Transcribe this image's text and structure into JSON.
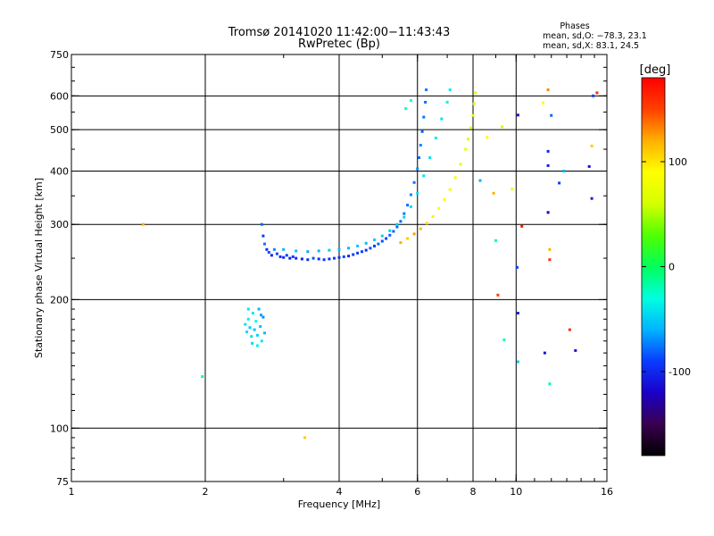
{
  "header": {
    "title_line1": "Tromsø 20141020 11:42:00−11:43:43",
    "title_line2": "RwPretec (Bp)"
  },
  "stats": {
    "heading": "Phases",
    "line_o": "mean, sd,O: −78.3, 23.1",
    "line_x": "mean, sd,X:  83.1, 24.5"
  },
  "colors": {
    "background": "#ffffff",
    "grid": "#000000",
    "colormap": [
      "#000000",
      "#3a004f",
      "#1a00c8",
      "#0a3cff",
      "#00b4ff",
      "#00ffe0",
      "#00ff5a",
      "#50ff00",
      "#d6ff00",
      "#ffff00",
      "#ffb000",
      "#ff4000",
      "#ff0000"
    ]
  },
  "chart_data": {
    "type": "scatter",
    "xlabel": "Frequency [MHz]",
    "ylabel": "Stationary phase Virtual Height [km]",
    "xscale": "log2",
    "yscale": "log",
    "xlim": [
      1,
      16
    ],
    "ylim": [
      75,
      750
    ],
    "xticks": [
      1,
      2,
      4,
      6,
      8,
      10,
      16
    ],
    "xgrid": [
      2,
      4,
      6,
      8,
      10
    ],
    "yticks": [
      75,
      100,
      200,
      300,
      400,
      500,
      600,
      750
    ],
    "ygrid": [
      100,
      200,
      300,
      400,
      500,
      600
    ],
    "grid": true,
    "colorbar": {
      "label": "[deg]",
      "min": -180,
      "max": 180,
      "ticks": [
        -100,
        0,
        100
      ]
    },
    "series": [
      {
        "trace": "low-frequency segment",
        "points": [
          [
            2.46,
            175,
            -40
          ],
          [
            2.48,
            168,
            -45
          ],
          [
            2.5,
            180,
            -35
          ],
          [
            2.52,
            172,
            -50
          ],
          [
            2.54,
            164,
            -42
          ],
          [
            2.56,
            186,
            -38
          ],
          [
            2.58,
            170,
            -55
          ],
          [
            2.6,
            178,
            -30
          ],
          [
            2.62,
            165,
            -48
          ],
          [
            2.64,
            190,
            -60
          ],
          [
            2.66,
            173,
            -52
          ],
          [
            2.68,
            160,
            -40
          ],
          [
            2.7,
            182,
            -70
          ],
          [
            2.55,
            158,
            -45
          ],
          [
            2.62,
            156,
            -35
          ],
          [
            2.67,
            184,
            -65
          ],
          [
            2.72,
            167,
            -58
          ],
          [
            2.5,
            190,
            -40
          ]
        ]
      },
      {
        "trace": "F-region O trace",
        "points": [
          [
            2.68,
            300,
            -80
          ],
          [
            2.7,
            282,
            -90
          ],
          [
            2.72,
            270,
            -75
          ],
          [
            2.75,
            262,
            -95
          ],
          [
            2.78,
            258,
            -85
          ],
          [
            2.82,
            254,
            -100
          ],
          [
            2.86,
            262,
            -70
          ],
          [
            2.9,
            256,
            -88
          ],
          [
            2.95,
            252,
            -95
          ],
          [
            3.0,
            251,
            -100
          ],
          [
            3.05,
            254,
            -90
          ],
          [
            3.1,
            250,
            -105
          ],
          [
            3.15,
            252,
            -92
          ],
          [
            3.2,
            250,
            -98
          ],
          [
            3.3,
            249,
            -100
          ],
          [
            3.4,
            248,
            -95
          ],
          [
            3.5,
            250,
            -85
          ],
          [
            3.6,
            249,
            -100
          ],
          [
            3.7,
            248,
            -92
          ],
          [
            3.8,
            249,
            -97
          ],
          [
            3.9,
            250,
            -90
          ],
          [
            4.0,
            251,
            -95
          ],
          [
            4.1,
            252,
            -88
          ],
          [
            4.2,
            253,
            -99
          ],
          [
            4.3,
            255,
            -90
          ],
          [
            4.4,
            257,
            -92
          ],
          [
            4.5,
            259,
            -88
          ],
          [
            4.6,
            261,
            -95
          ],
          [
            4.7,
            264,
            -85
          ],
          [
            4.8,
            267,
            -90
          ],
          [
            4.9,
            270,
            -80
          ],
          [
            5.0,
            274,
            -85
          ],
          [
            5.1,
            278,
            -88
          ],
          [
            5.2,
            283,
            -80
          ],
          [
            5.3,
            289,
            -82
          ],
          [
            5.4,
            296,
            -78
          ],
          [
            5.5,
            305,
            -80
          ],
          [
            5.6,
            318,
            -75
          ],
          [
            5.7,
            333,
            -78
          ],
          [
            5.8,
            352,
            -72
          ],
          [
            5.9,
            376,
            -75
          ],
          [
            6.0,
            405,
            -70
          ],
          [
            6.05,
            430,
            -78
          ],
          [
            6.1,
            460,
            -72
          ],
          [
            6.15,
            495,
            -80
          ],
          [
            6.2,
            535,
            -75
          ],
          [
            6.25,
            580,
            -78
          ],
          [
            6.28,
            620,
            -74
          ]
        ]
      },
      {
        "trace": "F-region O trace (upper)",
        "points": [
          [
            3.0,
            262,
            -60
          ],
          [
            3.2,
            260,
            -55
          ],
          [
            3.4,
            259,
            -62
          ],
          [
            3.6,
            260,
            -58
          ],
          [
            3.8,
            261,
            -50
          ],
          [
            4.0,
            262,
            -55
          ],
          [
            4.2,
            264,
            -60
          ],
          [
            4.4,
            267,
            -52
          ],
          [
            4.6,
            271,
            -55
          ],
          [
            4.8,
            276,
            -50
          ],
          [
            5.0,
            282,
            -48
          ],
          [
            5.2,
            290,
            -52
          ],
          [
            5.4,
            300,
            -45
          ],
          [
            5.6,
            312,
            -48
          ],
          [
            5.8,
            330,
            -42
          ],
          [
            6.0,
            355,
            -45
          ],
          [
            6.2,
            390,
            -40
          ],
          [
            6.4,
            430,
            -42
          ],
          [
            6.6,
            478,
            -38
          ],
          [
            6.8,
            530,
            -40
          ],
          [
            7.0,
            580,
            -35
          ],
          [
            7.1,
            620,
            -38
          ]
        ]
      },
      {
        "trace": "X trace",
        "points": [
          [
            5.5,
            272,
            120
          ],
          [
            5.7,
            278,
            110
          ],
          [
            5.9,
            285,
            125
          ],
          [
            6.1,
            293,
            115
          ],
          [
            6.3,
            302,
            100
          ],
          [
            6.5,
            313,
            95
          ],
          [
            6.7,
            327,
            90
          ],
          [
            6.9,
            343,
            85
          ],
          [
            7.1,
            362,
            80
          ],
          [
            7.3,
            386,
            78
          ],
          [
            7.5,
            415,
            75
          ],
          [
            7.7,
            450,
            72
          ],
          [
            7.8,
            475,
            70
          ],
          [
            7.9,
            505,
            68
          ],
          [
            8.0,
            540,
            65
          ],
          [
            8.05,
            575,
            62
          ],
          [
            8.1,
            610,
            60
          ]
        ]
      },
      {
        "trace": "scattered returns",
        "points": [
          [
            1.45,
            300,
            120
          ],
          [
            1.97,
            132,
            -20
          ],
          [
            3.35,
            95,
            110
          ],
          [
            5.8,
            585,
            -30
          ],
          [
            5.65,
            560,
            -25
          ],
          [
            8.3,
            380,
            -60
          ],
          [
            8.6,
            480,
            90
          ],
          [
            8.9,
            355,
            120
          ],
          [
            9.0,
            275,
            -20
          ],
          [
            9.1,
            205,
            150
          ],
          [
            9.4,
            161,
            -15
          ],
          [
            9.8,
            363,
            80
          ],
          [
            10.05,
            238,
            -90
          ],
          [
            10.1,
            541,
            -110
          ],
          [
            10.1,
            186,
            -100
          ],
          [
            10.1,
            143,
            -50
          ],
          [
            10.3,
            297,
            170
          ],
          [
            11.6,
            150,
            -110
          ],
          [
            11.8,
            620,
            130
          ],
          [
            11.8,
            445,
            -100
          ],
          [
            11.8,
            412,
            -105
          ],
          [
            11.8,
            320,
            -120
          ],
          [
            11.9,
            262,
            120
          ],
          [
            11.9,
            248,
            160
          ],
          [
            11.9,
            127,
            -15
          ],
          [
            12.5,
            375,
            -90
          ],
          [
            13.2,
            170,
            160
          ],
          [
            13.6,
            152,
            -110
          ],
          [
            14.6,
            410,
            -110
          ],
          [
            14.8,
            458,
            110
          ],
          [
            14.8,
            345,
            -105
          ],
          [
            14.9,
            600,
            -90
          ],
          [
            15.2,
            610,
            160
          ],
          [
            12.0,
            540,
            -80
          ],
          [
            11.5,
            578,
            90
          ],
          [
            9.3,
            508,
            60
          ],
          [
            12.8,
            400,
            -60
          ]
        ]
      }
    ]
  }
}
